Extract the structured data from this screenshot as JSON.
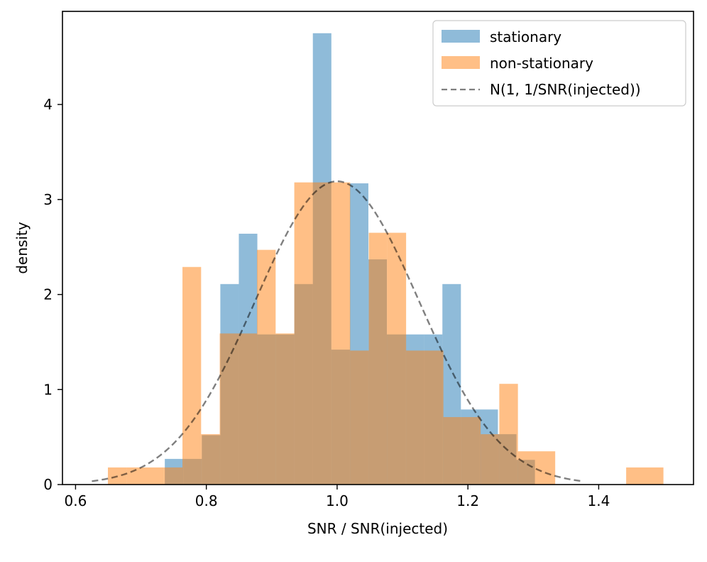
{
  "chart_data": {
    "type": "histogram",
    "title": "",
    "xlabel": "SNR / SNR(injected)",
    "ylabel": "density",
    "xlim": [
      0.58,
      1.545
    ],
    "ylim": [
      0,
      4.98
    ],
    "x_ticks": [
      0.6,
      0.8,
      1.0,
      1.2,
      1.4
    ],
    "x_tick_labels": [
      "0.6",
      "0.8",
      "1.0",
      "1.2",
      "1.4"
    ],
    "y_ticks": [
      0,
      1,
      2,
      3,
      4
    ],
    "y_tick_labels": [
      "0",
      "1",
      "2",
      "3",
      "4"
    ],
    "grid": false,
    "legend_position": "upper right",
    "series": [
      {
        "name": "stationary",
        "color": "#1f77b4",
        "alpha": 0.5,
        "bins": [
          {
            "x0": 0.7365,
            "x1": 0.7648,
            "value": 0.27
          },
          {
            "x0": 0.7648,
            "x1": 0.7931,
            "value": 0.27
          },
          {
            "x0": 0.7931,
            "x1": 0.8214,
            "value": 0.52
          },
          {
            "x0": 0.8214,
            "x1": 0.8497,
            "value": 2.11
          },
          {
            "x0": 0.8497,
            "x1": 0.878,
            "value": 2.64
          },
          {
            "x0": 0.878,
            "x1": 0.9063,
            "value": 1.58
          },
          {
            "x0": 0.9063,
            "x1": 0.9346,
            "value": 1.58
          },
          {
            "x0": 0.9346,
            "x1": 0.9629,
            "value": 2.11
          },
          {
            "x0": 0.9629,
            "x1": 0.9912,
            "value": 4.75
          },
          {
            "x0": 0.9912,
            "x1": 1.0195,
            "value": 1.42
          },
          {
            "x0": 1.0195,
            "x1": 1.0478,
            "value": 3.17
          },
          {
            "x0": 1.0478,
            "x1": 1.0761,
            "value": 2.37
          },
          {
            "x0": 1.0761,
            "x1": 1.1044,
            "value": 1.58
          },
          {
            "x0": 1.1044,
            "x1": 1.1327,
            "value": 1.58
          },
          {
            "x0": 1.1327,
            "x1": 1.161,
            "value": 1.58
          },
          {
            "x0": 1.161,
            "x1": 1.1893,
            "value": 2.11
          },
          {
            "x0": 1.1893,
            "x1": 1.2176,
            "value": 0.79
          },
          {
            "x0": 1.2176,
            "x1": 1.2459,
            "value": 0.79
          },
          {
            "x0": 1.2459,
            "x1": 1.2742,
            "value": 0.53
          },
          {
            "x0": 1.2742,
            "x1": 1.3025,
            "value": 0.26
          }
        ]
      },
      {
        "name": "non-stationary",
        "color": "#ff7f0e",
        "alpha": 0.5,
        "bins": [
          {
            "x0": 0.6495,
            "x1": 0.678,
            "value": 0.18
          },
          {
            "x0": 0.678,
            "x1": 0.735,
            "value": 0.18
          },
          {
            "x0": 0.735,
            "x1": 0.7635,
            "value": 0.18
          },
          {
            "x0": 0.7635,
            "x1": 0.792,
            "value": 2.29
          },
          {
            "x0": 0.792,
            "x1": 0.8205,
            "value": 0.53
          },
          {
            "x0": 0.8205,
            "x1": 0.8775,
            "value": 1.59
          },
          {
            "x0": 0.8775,
            "x1": 0.906,
            "value": 2.47
          },
          {
            "x0": 0.906,
            "x1": 0.9345,
            "value": 1.59
          },
          {
            "x0": 0.9345,
            "x1": 0.9915,
            "value": 3.18
          },
          {
            "x0": 0.9915,
            "x1": 1.02,
            "value": 3.18
          },
          {
            "x0": 1.02,
            "x1": 1.0485,
            "value": 1.41
          },
          {
            "x0": 1.0485,
            "x1": 1.077,
            "value": 2.65
          },
          {
            "x0": 1.077,
            "x1": 1.1055,
            "value": 2.65
          },
          {
            "x0": 1.1055,
            "x1": 1.1625,
            "value": 1.41
          },
          {
            "x0": 1.1625,
            "x1": 1.191,
            "value": 0.71
          },
          {
            "x0": 1.191,
            "x1": 1.2195,
            "value": 0.71
          },
          {
            "x0": 1.2195,
            "x1": 1.248,
            "value": 0.53
          },
          {
            "x0": 1.248,
            "x1": 1.2765,
            "value": 1.06
          },
          {
            "x0": 1.2765,
            "x1": 1.3335,
            "value": 0.35
          },
          {
            "x0": 1.442,
            "x1": 1.499,
            "value": 0.18
          }
        ]
      },
      {
        "name": "N(1, 1/SNR(injected))",
        "type": "line",
        "style": "dashed",
        "color": "#000000",
        "alpha": 0.5,
        "mean": 1.0,
        "sigma": 0.125,
        "x_range": [
          0.625,
          1.375
        ]
      }
    ]
  }
}
